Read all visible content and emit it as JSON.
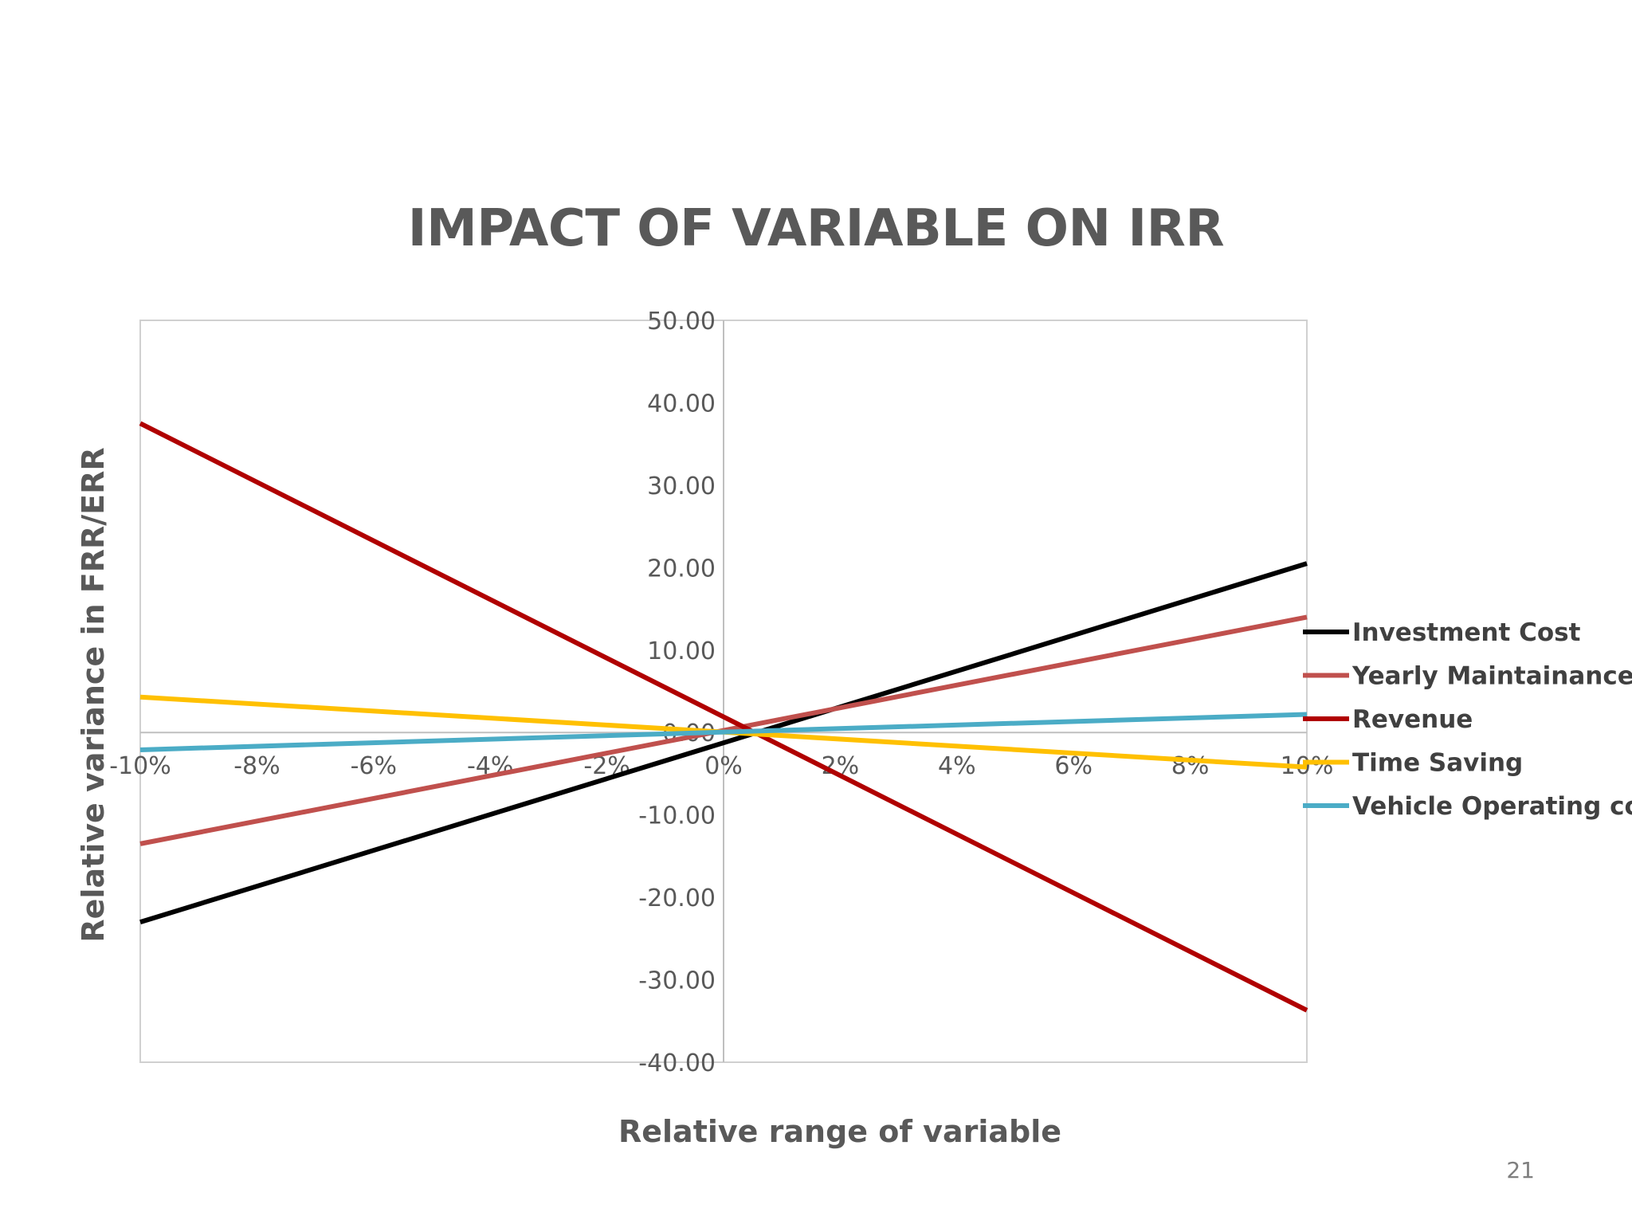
{
  "page": {
    "number": "21"
  },
  "colors": {
    "investment_cost": "#000000",
    "yearly_maintainance": "#c0504d",
    "revenue": "#b00000",
    "time_saving": "#ffc000",
    "vehicle_operating_cost": "#4bacc6",
    "axis_text": "#595959",
    "grid": "#d0d0d0"
  },
  "chart_data": {
    "type": "line",
    "title": "IMPACT OF VARIABLE ON IRR",
    "xlabel": "Relative range of variable",
    "ylabel": "Relative variance in FRR/ERR",
    "x": [
      -10,
      10
    ],
    "xlim": [
      -10,
      10
    ],
    "ylim": [
      -40,
      50
    ],
    "x_ticks": [
      -10,
      -8,
      -6,
      -4,
      -2,
      0,
      2,
      4,
      6,
      8,
      10
    ],
    "x_tick_labels": [
      "-10%",
      "-8%",
      "-6%",
      "-4%",
      "-2%",
      "0%",
      "2%",
      "4%",
      "6%",
      "8%",
      "10%"
    ],
    "y_ticks": [
      50,
      40,
      30,
      20,
      10,
      0,
      -10,
      -20,
      -30,
      -40
    ],
    "y_tick_labels": [
      "50.00",
      "40.00",
      "30.00",
      "20.00",
      "10.00",
      "0.00",
      "-10.00",
      "-20.00",
      "-30.00",
      "-40.00"
    ],
    "legend_position": "right",
    "series": [
      {
        "name": "Investment Cost",
        "color": "#000000",
        "values": [
          -23,
          20.5
        ]
      },
      {
        "name": "Yearly Maintainance",
        "color": "#c0504d",
        "values": [
          -13.5,
          14
        ]
      },
      {
        "name": "Revenue",
        "color": "#b00000",
        "values": [
          37.5,
          -33.7
        ]
      },
      {
        "name": "Time Saving",
        "color": "#ffc000",
        "values": [
          4.3,
          -4.2
        ]
      },
      {
        "name": "Vehicle Operating cost",
        "color": "#4bacc6",
        "values": [
          -2.1,
          2.2
        ]
      }
    ]
  }
}
